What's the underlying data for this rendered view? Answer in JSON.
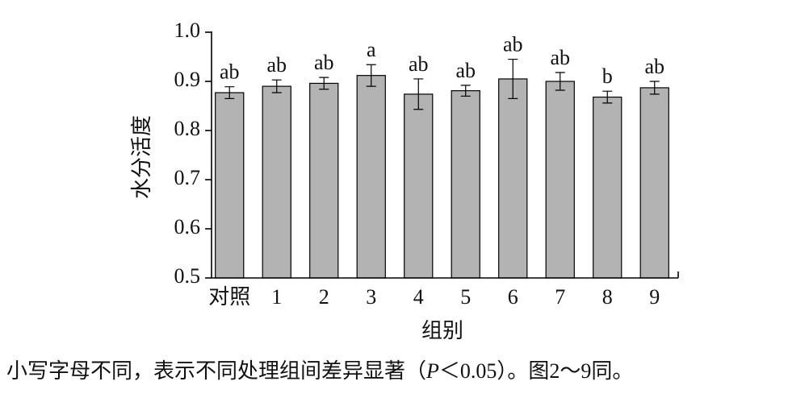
{
  "chart_data": {
    "type": "bar",
    "y_label": "水分活度",
    "x_label": "组别",
    "categories": [
      "对照",
      "1",
      "2",
      "3",
      "4",
      "5",
      "6",
      "7",
      "8",
      "9"
    ],
    "values": [
      0.877,
      0.89,
      0.896,
      0.912,
      0.874,
      0.881,
      0.905,
      0.9,
      0.868,
      0.887
    ],
    "errors": [
      0.012,
      0.013,
      0.012,
      0.022,
      0.031,
      0.011,
      0.04,
      0.018,
      0.012,
      0.013
    ],
    "letters": [
      "ab",
      "ab",
      "ab",
      "a",
      "ab",
      "ab",
      "ab",
      "ab",
      "b",
      "ab"
    ],
    "color": "#b3b3b3",
    "ylim": [
      0.5,
      1.0
    ],
    "yticks": [
      0.5,
      0.6,
      0.7,
      0.8,
      0.9,
      {
        "value": 1.0,
        "label": "1.0"
      }
    ],
    "caption": [
      "小写字母不同，表示不同处理组间差异显著（",
      "P",
      "＜0.05）。图2～9同。"
    ]
  }
}
